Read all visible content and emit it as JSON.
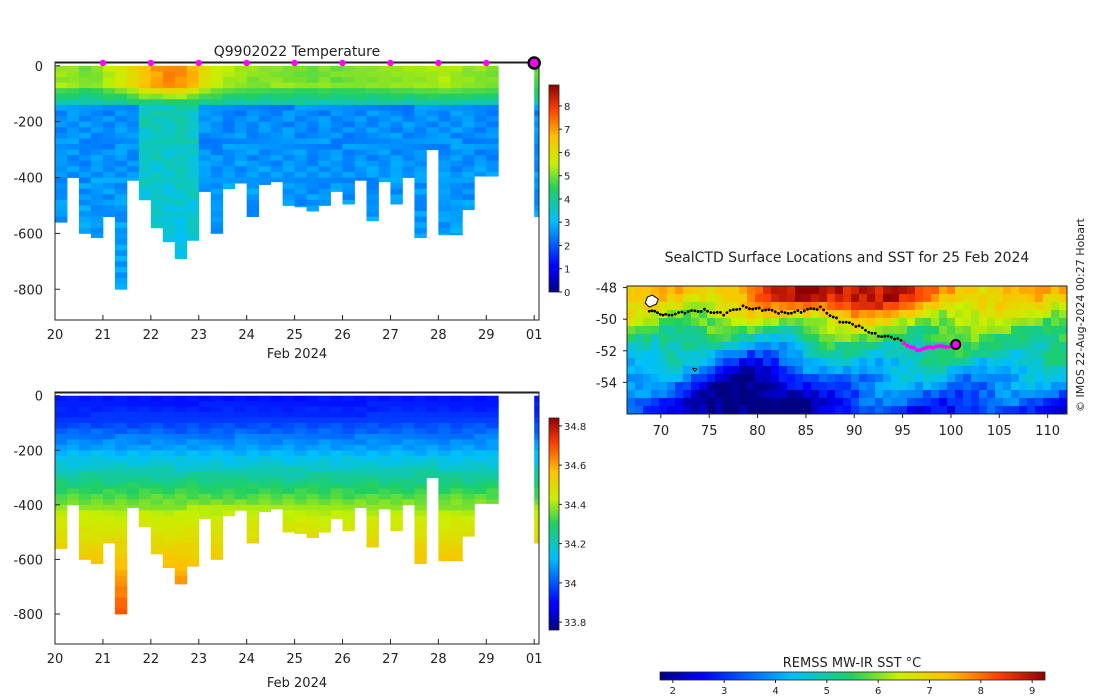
{
  "chart_data": [
    {
      "id": "temperature",
      "type": "heatmap",
      "title": "Q9902022  Temperature",
      "xlabel": "Feb 2024",
      "ylabel": "",
      "x_ticks": [
        "20",
        "21",
        "22",
        "23",
        "24",
        "25",
        "26",
        "27",
        "28",
        "29",
        "01"
      ],
      "y_ticks": [
        "0",
        "-200",
        "-400",
        "-600",
        "-800"
      ],
      "xlim": [
        20,
        30.1
      ],
      "ylim": [
        -910,
        10
      ],
      "colorbar": {
        "min": 0,
        "max": 8.9,
        "ticks": [
          "0",
          "1",
          "2",
          "3",
          "4",
          "5",
          "6",
          "7",
          "8"
        ]
      },
      "surface_markers_day": [
        21,
        22,
        23,
        24,
        25,
        26,
        27,
        28,
        29
      ],
      "current_marker_day": 30,
      "profiles": [
        {
          "day": 20.0,
          "depth": 560,
          "surface": 5.3
        },
        {
          "day": 20.25,
          "depth": 400,
          "surface": 5.2
        },
        {
          "day": 20.5,
          "depth": 600,
          "surface": 5.0
        },
        {
          "day": 20.75,
          "depth": 615,
          "surface": 5.1
        },
        {
          "day": 21.0,
          "depth": 540,
          "surface": 5.4
        },
        {
          "day": 21.25,
          "depth": 800,
          "surface": 5.8
        },
        {
          "day": 21.5,
          "depth": 410,
          "surface": 6.1
        },
        {
          "day": 21.75,
          "depth": 480,
          "surface": 6.7
        },
        {
          "day": 22.0,
          "depth": 580,
          "surface": 7.0
        },
        {
          "day": 22.25,
          "depth": 630,
          "surface": 7.2
        },
        {
          "day": 22.5,
          "depth": 690,
          "surface": 7.1
        },
        {
          "day": 22.75,
          "depth": 625,
          "surface": 6.8
        },
        {
          "day": 23.0,
          "depth": 450,
          "surface": 6.0
        },
        {
          "day": 23.25,
          "depth": 600,
          "surface": 5.6
        },
        {
          "day": 23.5,
          "depth": 440,
          "surface": 5.4
        },
        {
          "day": 23.75,
          "depth": 420,
          "surface": 5.3
        },
        {
          "day": 24.0,
          "depth": 540,
          "surface": 5.2
        },
        {
          "day": 24.25,
          "depth": 425,
          "surface": 5.2
        },
        {
          "day": 24.5,
          "depth": 415,
          "surface": 5.1
        },
        {
          "day": 24.75,
          "depth": 500,
          "surface": 5.1
        },
        {
          "day": 25.0,
          "depth": 505,
          "surface": 5.0
        },
        {
          "day": 25.25,
          "depth": 520,
          "surface": 5.0
        },
        {
          "day": 25.5,
          "depth": 500,
          "surface": 5.1
        },
        {
          "day": 25.75,
          "depth": 450,
          "surface": 5.0
        },
        {
          "day": 26.0,
          "depth": 495,
          "surface": 5.0
        },
        {
          "day": 26.25,
          "depth": 410,
          "surface": 5.0
        },
        {
          "day": 26.5,
          "depth": 555,
          "surface": 5.1
        },
        {
          "day": 26.75,
          "depth": 415,
          "surface": 5.1
        },
        {
          "day": 27.0,
          "depth": 495,
          "surface": 5.2
        },
        {
          "day": 27.25,
          "depth": 400,
          "surface": 5.2
        },
        {
          "day": 27.5,
          "depth": 615,
          "surface": 5.3
        },
        {
          "day": 27.75,
          "depth": 300,
          "surface": 5.3
        },
        {
          "day": 28.0,
          "depth": 605,
          "surface": 5.4
        },
        {
          "day": 28.25,
          "depth": 605,
          "surface": 5.3
        },
        {
          "day": 28.5,
          "depth": 515,
          "surface": 5.2
        },
        {
          "day": 28.75,
          "depth": 395,
          "surface": 5.2
        },
        {
          "day": 29.0,
          "depth": 395,
          "surface": 5.1
        },
        {
          "day": 29.25,
          "depth": 0,
          "surface": 0
        },
        {
          "day": 29.5,
          "depth": 0,
          "surface": 0
        },
        {
          "day": 29.75,
          "depth": 0,
          "surface": 0
        },
        {
          "day": 30.0,
          "depth": 540,
          "surface": 4.8
        }
      ]
    },
    {
      "id": "salinity",
      "type": "heatmap",
      "title": "",
      "xlabel": "Feb 2024",
      "ylabel": "",
      "x_ticks": [
        "20",
        "21",
        "22",
        "23",
        "24",
        "25",
        "26",
        "27",
        "28",
        "29",
        "01"
      ],
      "y_ticks": [
        "0",
        "-200",
        "-400",
        "-600",
        "-800"
      ],
      "xlim": [
        20,
        30.1
      ],
      "ylim": [
        -910,
        10
      ],
      "colorbar": {
        "min": 33.76,
        "max": 34.84,
        "ticks": [
          "33.8",
          "34",
          "34.2",
          "34.4",
          "34.6",
          "34.8"
        ]
      },
      "profiles_from": "temperature"
    },
    {
      "id": "sst_map",
      "type": "heatmap",
      "title": "SealCTD Surface Locations and SST for 25 Feb 2024",
      "xlabel": "",
      "ylabel": "",
      "x_ticks": [
        "70",
        "75",
        "80",
        "85",
        "90",
        "95",
        "100",
        "105",
        "110"
      ],
      "y_ticks": [
        "-48",
        "-50",
        "-52",
        "-54"
      ],
      "xlim": [
        66.5,
        112
      ],
      "ylim": [
        -56,
        -47.9
      ],
      "track_lon": [
        68.8,
        70.5,
        72.5,
        74.5,
        76.5,
        78.5,
        80.5,
        82.5,
        84.5,
        86.5,
        88.5,
        90.5,
        92.5,
        94.5,
        96.5,
        98.5,
        100.5
      ],
      "track_lat": [
        -49.5,
        -49.7,
        -49.6,
        -49.4,
        -49.7,
        -49.2,
        -49.4,
        -49.6,
        -49.5,
        -49.3,
        -50.1,
        -50.5,
        -51.0,
        -51.3,
        -51.9,
        -51.8,
        -51.6
      ],
      "recent_track_start_lon": 95.0,
      "current_position": {
        "lon": 100.5,
        "lat": -51.6
      }
    }
  ],
  "colorbar_sst": {
    "label": "REMSS MW-IR SST °C",
    "ticks": [
      "2",
      "3",
      "4",
      "5",
      "6",
      "7",
      "8",
      "9"
    ],
    "min": 1.75,
    "max": 9.25
  },
  "credit": "© IMOS 22-Aug-2024 00:27 Hobart",
  "colors": {
    "marker": "#ff00ff",
    "track": "#000000",
    "axis": "#222222"
  }
}
